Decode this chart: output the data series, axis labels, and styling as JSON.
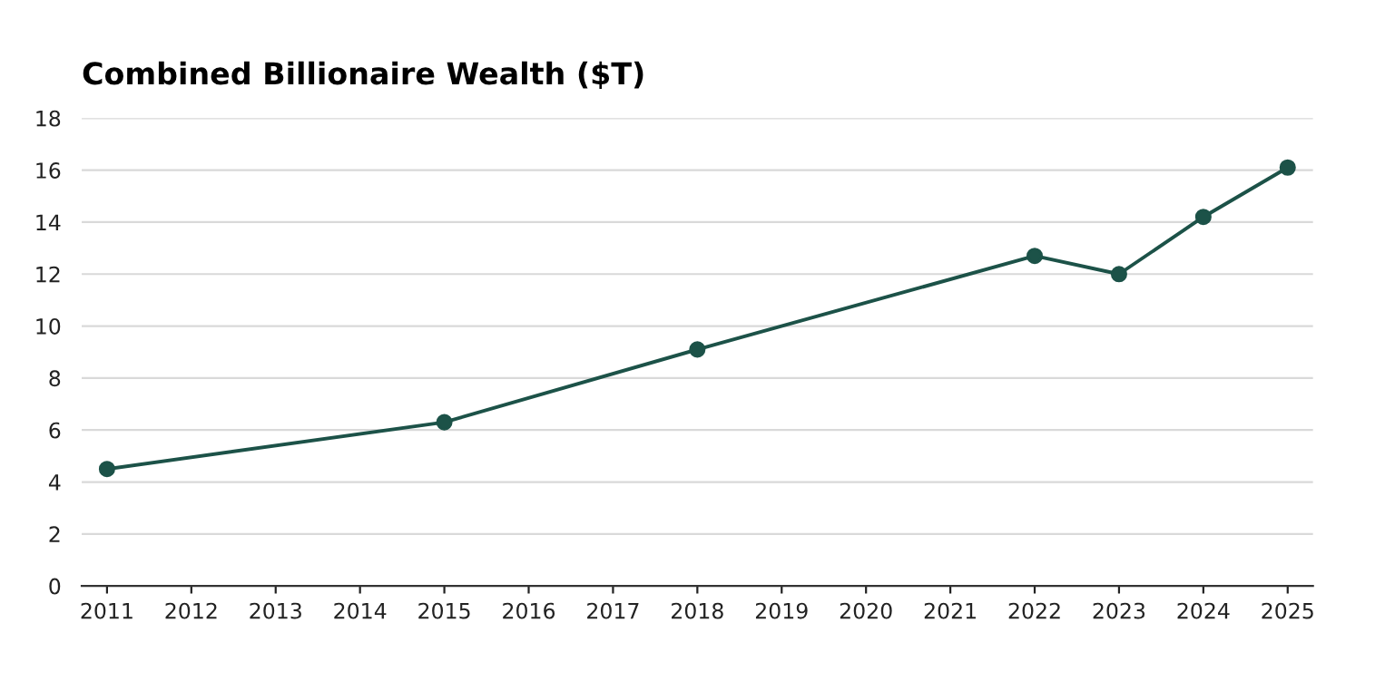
{
  "chart_data": {
    "type": "line",
    "title": "Combined Billionaire Wealth ($T)",
    "x": [
      2011,
      2015,
      2018,
      2022,
      2023,
      2024,
      2025
    ],
    "series": [
      {
        "color": "#1c5248",
        "values": [
          4.5,
          6.3,
          9.1,
          12.7,
          12.0,
          14.2,
          16.1
        ]
      }
    ],
    "xlim": [
      2010.7,
      2025.3
    ],
    "xticks": [
      2011,
      2012,
      2013,
      2014,
      2015,
      2016,
      2017,
      2018,
      2019,
      2020,
      2021,
      2022,
      2023,
      2024,
      2025
    ],
    "ylim": [
      0,
      18
    ],
    "yticks": [
      0,
      2,
      4,
      6,
      8,
      10,
      12,
      14,
      16,
      18
    ],
    "grid": "y",
    "marker": "circle",
    "line_style": "solid",
    "legend": false
  }
}
